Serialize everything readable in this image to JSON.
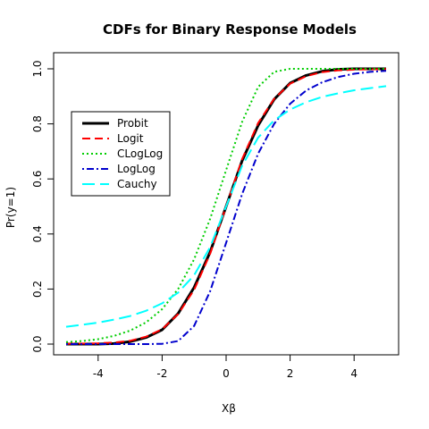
{
  "chart_data": {
    "type": "line",
    "title": "CDFs for Binary Response Models",
    "xlabel": "Xβ",
    "ylabel": "Pr(y=1)",
    "xlim": [
      -5,
      5
    ],
    "ylim": [
      0,
      1
    ],
    "x_ticks": [
      -4,
      -2,
      0,
      2,
      4
    ],
    "y_ticks": [
      0.0,
      0.2,
      0.4,
      0.6,
      0.8,
      1.0
    ],
    "x_tick_labels": [
      "-4",
      "-2",
      "0",
      "2",
      "4"
    ],
    "y_tick_labels": [
      "0.0",
      "0.2",
      "0.4",
      "0.6",
      "0.8",
      "1.0"
    ],
    "grid": false,
    "legend_position": "left",
    "x": [
      -5,
      -4.5,
      -4,
      -3.5,
      -3,
      -2.5,
      -2,
      -1.5,
      -1,
      -0.5,
      0,
      0.5,
      1,
      1.5,
      2,
      2.5,
      3,
      3.5,
      4,
      4.5,
      5
    ],
    "series": [
      {
        "name": "Probit",
        "color": "#000000",
        "dash": "solid",
        "values": [
          0.0,
          0.0,
          0.0,
          0.002,
          0.009,
          0.024,
          0.052,
          0.111,
          0.206,
          0.334,
          0.5,
          0.666,
          0.794,
          0.889,
          0.948,
          0.976,
          0.991,
          0.998,
          1.0,
          1.0,
          1.0
        ]
      },
      {
        "name": "Logit",
        "color": "#ff0000",
        "dash": "dashed",
        "values": [
          0.001,
          0.002,
          0.003,
          0.006,
          0.012,
          0.027,
          0.054,
          0.109,
          0.197,
          0.328,
          0.5,
          0.672,
          0.803,
          0.891,
          0.946,
          0.973,
          0.988,
          0.994,
          0.997,
          0.998,
          0.999
        ]
      },
      {
        "name": "CLogLog",
        "color": "#00cd00",
        "dash": "dotted",
        "values": [
          0.007,
          0.011,
          0.018,
          0.03,
          0.049,
          0.079,
          0.127,
          0.2,
          0.308,
          0.455,
          0.632,
          0.807,
          0.934,
          0.989,
          1.0,
          1.0,
          1.0,
          1.0,
          1.0,
          1.0,
          1.0
        ]
      },
      {
        "name": "LogLog",
        "color": "#0000cd",
        "dash": "dotdash",
        "values": [
          0.0,
          0.0,
          0.0,
          0.0,
          0.0,
          0.0,
          0.001,
          0.011,
          0.066,
          0.192,
          0.368,
          0.545,
          0.692,
          0.8,
          0.873,
          0.921,
          0.951,
          0.97,
          0.982,
          0.989,
          0.993
        ]
      },
      {
        "name": "Cauchy",
        "color": "#00ffff",
        "dash": "longdash",
        "values": [
          0.063,
          0.07,
          0.078,
          0.089,
          0.102,
          0.121,
          0.148,
          0.187,
          0.25,
          0.352,
          0.5,
          0.648,
          0.75,
          0.813,
          0.852,
          0.879,
          0.898,
          0.911,
          0.922,
          0.93,
          0.937
        ]
      }
    ]
  }
}
